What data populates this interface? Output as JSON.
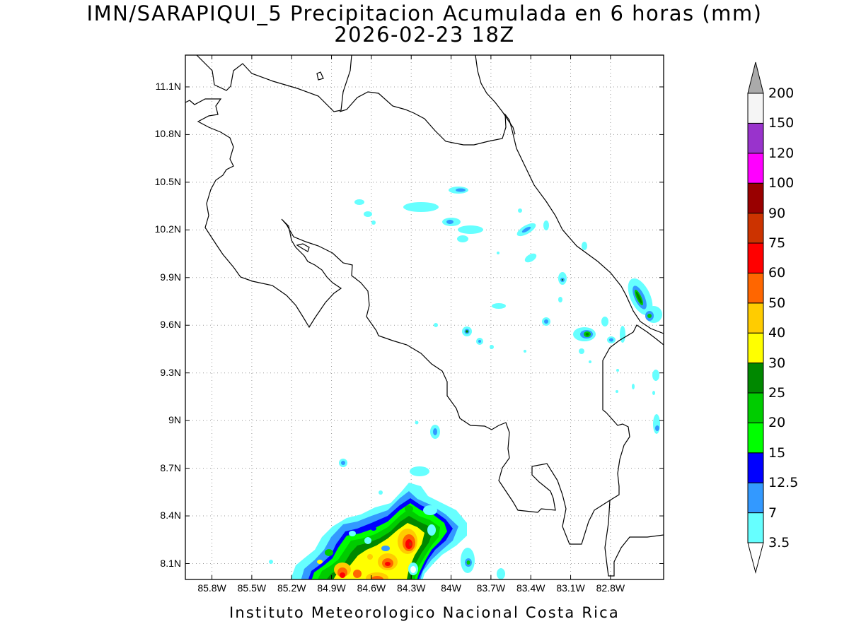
{
  "title": {
    "line1": "IMN/SARAPIQUI_5 Precipitacion Acumulada en 6 horas (mm)",
    "line2": "2026-02-23 18Z"
  },
  "footer": "Instituto Meteorologico Nacional Costa Rica",
  "map": {
    "lon_range": [
      -86.0,
      -82.4
    ],
    "lat_range": [
      8.0,
      11.3
    ],
    "grid": true,
    "lat_ticks": [
      "8.1N",
      "8.4N",
      "8.7N",
      "9N",
      "9.3N",
      "9.6N",
      "9.9N",
      "10.2N",
      "10.5N",
      "10.8N",
      "11.1N"
    ],
    "lon_ticks": [
      "85.8W",
      "85.5W",
      "85.2W",
      "84.9W",
      "84.6W",
      "84.3W",
      "84W",
      "83.7W",
      "83.4W",
      "83.1W",
      "82.8W"
    ]
  },
  "colorbar": {
    "levels": [
      "3.5",
      "7",
      "12.5",
      "15",
      "20",
      "25",
      "30",
      "40",
      "50",
      "60",
      "75",
      "90",
      "100",
      "120",
      "150",
      "200"
    ],
    "colors": [
      "#66ffff",
      "#3399ff",
      "#0000ff",
      "#00ff00",
      "#00cc00",
      "#008800",
      "#ffff00",
      "#ffcc00",
      "#ff6600",
      "#ff0000",
      "#cc3300",
      "#990000",
      "#ff00ff",
      "#9933cc",
      "#f5f5f5"
    ],
    "over_color": "#aaaaaa",
    "under_color": "#ffffff"
  }
}
